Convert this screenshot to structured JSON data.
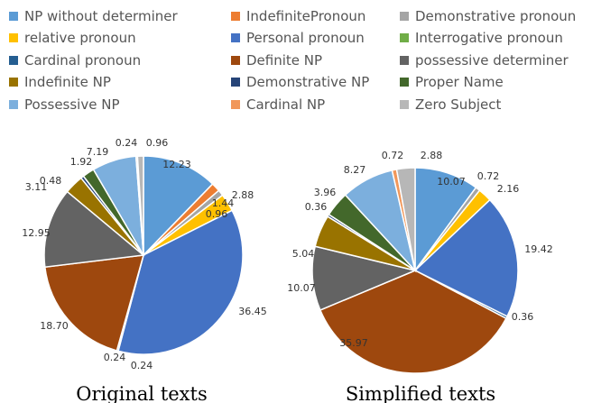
{
  "chart_data": [
    {
      "type": "pie",
      "title": "Original texts",
      "legend": "top",
      "categories": [
        "NP without determiner",
        "IndefinitePronoun",
        "Demonstrative pronoun",
        "relative pronoun",
        "Personal pronoun",
        "Interrogative pronoun",
        "Cardinal pronoun",
        "Definite NP",
        "possessive determiner",
        "Indefinite NP",
        "Demonstrative NP",
        "Proper Name",
        "Possessive NP",
        "Cardinal NP",
        "Zero Subject"
      ],
      "colors": [
        "#5b9bd5",
        "#ed7d31",
        "#a5a5a5",
        "#ffc000",
        "#4472c4",
        "#70ad47",
        "#255e91",
        "#9e480e",
        "#636363",
        "#997300",
        "#264478",
        "#43682b",
        "#7cafdd",
        "#f1975a",
        "#b7b7b7"
      ],
      "values": [
        12.23,
        1.44,
        0.96,
        2.88,
        36.45,
        0.0,
        0.24,
        18.7,
        12.95,
        3.11,
        0.48,
        1.92,
        7.19,
        0.24,
        0.96
      ],
      "labels": [
        "12.23",
        "1.44",
        "0.96",
        "2.88",
        "36.45",
        "",
        "0.24",
        "18.70",
        "12.95",
        "3.11",
        "0.48",
        "1.92",
        "7.19",
        "0.24",
        "0.96"
      ],
      "extra_label": "0.24"
    },
    {
      "type": "pie",
      "title": "Simplified texts",
      "legend": "top",
      "categories": [
        "NP without determiner",
        "IndefinitePronoun",
        "Demonstrative pronoun",
        "relative pronoun",
        "Personal pronoun",
        "Interrogative pronoun",
        "Cardinal pronoun",
        "Definite NP",
        "possessive determiner",
        "Indefinite NP",
        "Demonstrative NP",
        "Proper Name",
        "Possessive NP",
        "Cardinal NP",
        "Zero Subject"
      ],
      "colors": [
        "#5b9bd5",
        "#ed7d31",
        "#a5a5a5",
        "#ffc000",
        "#4472c4",
        "#70ad47",
        "#255e91",
        "#9e480e",
        "#636363",
        "#997300",
        "#264478",
        "#43682b",
        "#7cafdd",
        "#f1975a",
        "#b7b7b7"
      ],
      "values": [
        10.07,
        0.0,
        0.72,
        2.16,
        19.42,
        0.0,
        0.36,
        35.97,
        10.07,
        5.04,
        0.36,
        3.96,
        8.27,
        0.72,
        2.88
      ],
      "labels": [
        "10.07",
        "",
        "0.72",
        "2.16",
        "19.42",
        "",
        "0.36",
        "35.97",
        "10.07",
        "5.04",
        "0.36",
        "3.96",
        "8.27",
        "0.72",
        "2.88"
      ]
    }
  ]
}
